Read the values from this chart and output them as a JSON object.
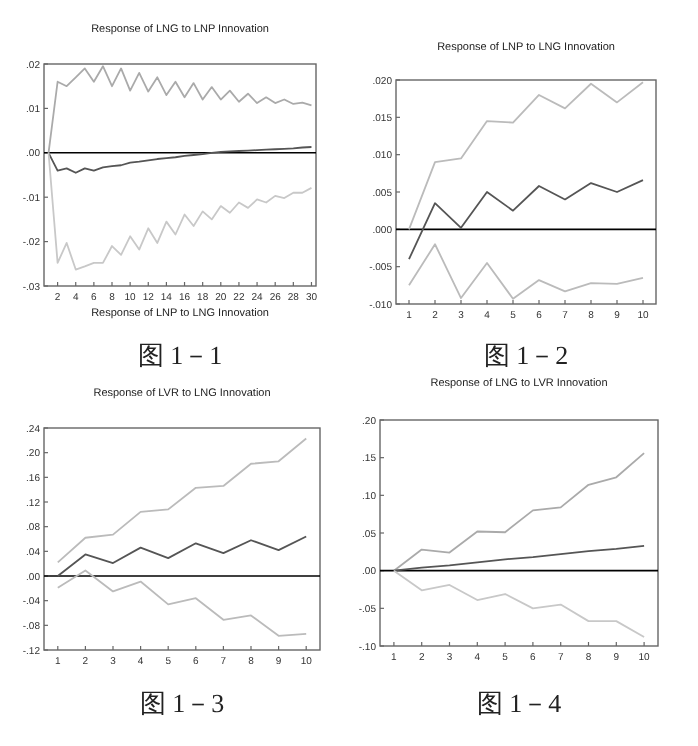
{
  "chart_data": [
    {
      "type": "line",
      "title": "Response of LNG to LNP Innovation",
      "xlabel": "Response of LNP to LNG Innovation",
      "x": [
        1,
        2,
        3,
        4,
        5,
        6,
        7,
        8,
        9,
        10,
        11,
        12,
        13,
        14,
        15,
        16,
        17,
        18,
        19,
        20,
        21,
        22,
        23,
        24,
        25,
        26,
        27,
        28,
        29,
        30
      ],
      "xlim": [
        0.5,
        30.5
      ],
      "xticks": [
        2,
        4,
        6,
        8,
        10,
        12,
        14,
        16,
        18,
        20,
        22,
        24,
        26,
        28,
        30
      ],
      "ylim": [
        -0.03,
        0.02
      ],
      "yticks": [
        {
          "value": 0.02,
          "label": ".02"
        },
        {
          "value": 0.01,
          "label": ".01"
        },
        {
          "value": 0,
          "label": ".00"
        },
        {
          "value": -0.01,
          "label": "-.01"
        },
        {
          "value": -0.02,
          "label": "-.02"
        },
        {
          "value": -0.03,
          "label": "-.03"
        }
      ],
      "series": [
        {
          "color": "#aaaaaa",
          "values": [
            0,
            0.016,
            0.015,
            0.017,
            0.019,
            0.016,
            0.0195,
            0.015,
            0.019,
            0.014,
            0.018,
            0.0138,
            0.017,
            0.013,
            0.016,
            0.0125,
            0.0157,
            0.012,
            0.0148,
            0.012,
            0.014,
            0.0115,
            0.0133,
            0.0112,
            0.0125,
            0.0112,
            0.012,
            0.011,
            0.0113,
            0.0107
          ]
        },
        {
          "color": "#555555",
          "values": [
            0,
            -0.004,
            -0.0035,
            -0.0045,
            -0.0035,
            -0.004,
            -0.0033,
            -0.003,
            -0.0028,
            -0.0022,
            -0.002,
            -0.0017,
            -0.0014,
            -0.0012,
            -0.001,
            -0.0007,
            -0.0005,
            -0.0003,
            0,
            0.0002,
            0.0003,
            0.0004,
            0.0005,
            0.0006,
            0.0007,
            0.0008,
            0.0009,
            0.001,
            0.0012,
            0.0013
          ]
        },
        {
          "color": "#c8c8c8",
          "values": [
            0,
            -0.0248,
            -0.0203,
            -0.0263,
            -0.0256,
            -0.0248,
            -0.0248,
            -0.021,
            -0.023,
            -0.0188,
            -0.0218,
            -0.017,
            -0.0203,
            -0.0155,
            -0.0184,
            -0.0139,
            -0.0165,
            -0.0132,
            -0.015,
            -0.012,
            -0.0135,
            -0.0112,
            -0.0124,
            -0.0105,
            -0.0112,
            -0.0097,
            -0.0102,
            -0.009,
            -0.009,
            -0.0079
          ]
        }
      ],
      "ref_lines": [
        {
          "axis": "y",
          "value": 0,
          "color": "#000000"
        }
      ],
      "annotations": [
        "图 1－1"
      ]
    },
    {
      "type": "line",
      "title": "Response of LNP to LNG Innovation",
      "x": [
        1,
        2,
        3,
        4,
        5,
        6,
        7,
        8,
        9,
        10
      ],
      "xlim": [
        0.5,
        10.5
      ],
      "xticks": [
        1,
        2,
        3,
        4,
        5,
        6,
        7,
        8,
        9,
        10
      ],
      "ylim": [
        -0.01,
        0.02
      ],
      "yticks": [
        {
          "value": 0.02,
          "label": ".020"
        },
        {
          "value": 0.015,
          "label": ".015"
        },
        {
          "value": 0.01,
          "label": ".010"
        },
        {
          "value": 0.005,
          "label": ".005"
        },
        {
          "value": 0,
          "label": ".000"
        },
        {
          "value": -0.005,
          "label": "-.005"
        },
        {
          "value": -0.01,
          "label": "-.010"
        }
      ],
      "series": [
        {
          "color": "#bbbbbb",
          "values": [
            0,
            0.009,
            0.0095,
            0.0145,
            0.0143,
            0.018,
            0.0162,
            0.0195,
            0.017,
            0.0197
          ]
        },
        {
          "color": "#555555",
          "values": [
            -0.004,
            0.0035,
            0.0002,
            0.005,
            0.0025,
            0.0058,
            0.004,
            0.0062,
            0.005,
            0.0066
          ]
        },
        {
          "color": "#bbbbbb",
          "values": [
            -0.0075,
            -0.002,
            -0.0092,
            -0.0045,
            -0.0093,
            -0.0068,
            -0.0083,
            -0.0072,
            -0.0073,
            -0.0065
          ]
        }
      ],
      "ref_lines": [
        {
          "axis": "y",
          "value": 0,
          "color": "#000000"
        }
      ],
      "annotations": [
        "图 1－2"
      ]
    },
    {
      "type": "line",
      "title": "Response of LVR to LNG Innovation",
      "x": [
        1,
        2,
        3,
        4,
        5,
        6,
        7,
        8,
        9,
        10
      ],
      "xlim": [
        0.5,
        10.5
      ],
      "xticks": [
        1,
        2,
        3,
        4,
        5,
        6,
        7,
        8,
        9,
        10
      ],
      "ylim": [
        -0.12,
        0.24
      ],
      "yticks": [
        {
          "value": 0.24,
          "label": ".24"
        },
        {
          "value": 0.2,
          "label": ".20"
        },
        {
          "value": 0.16,
          "label": ".16"
        },
        {
          "value": 0.12,
          "label": ".12"
        },
        {
          "value": 0.08,
          "label": ".08"
        },
        {
          "value": 0.04,
          "label": ".04"
        },
        {
          "value": 0,
          "label": ".00"
        },
        {
          "value": -0.04,
          "label": "-.04"
        },
        {
          "value": -0.08,
          "label": "-.08"
        },
        {
          "value": -0.12,
          "label": "-.12"
        }
      ],
      "series": [
        {
          "color": "#bbbbbb",
          "values": [
            0.022,
            0.062,
            0.067,
            0.104,
            0.108,
            0.143,
            0.146,
            0.182,
            0.186,
            0.223
          ]
        },
        {
          "color": "#555555",
          "values": [
            0,
            0.035,
            0.021,
            0.046,
            0.029,
            0.053,
            0.037,
            0.058,
            0.042,
            0.064
          ]
        },
        {
          "color": "#bbbbbb",
          "values": [
            -0.019,
            0.009,
            -0.025,
            -0.009,
            -0.046,
            -0.036,
            -0.071,
            -0.064,
            -0.097,
            -0.094
          ]
        }
      ],
      "ref_lines": [
        {
          "axis": "y",
          "value": 0,
          "color": "#000000"
        }
      ],
      "annotations": [
        "图 1－3"
      ]
    },
    {
      "type": "line",
      "title": "Response of LNG to LVR Innovation",
      "x": [
        1,
        2,
        3,
        4,
        5,
        6,
        7,
        8,
        9,
        10
      ],
      "xlim": [
        0.5,
        10.5
      ],
      "xticks": [
        1,
        2,
        3,
        4,
        5,
        6,
        7,
        8,
        9,
        10
      ],
      "ylim": [
        -0.1,
        0.2
      ],
      "yticks": [
        {
          "value": 0.2,
          "label": ".20"
        },
        {
          "value": 0.15,
          "label": ".15"
        },
        {
          "value": 0.1,
          "label": ".10"
        },
        {
          "value": 0.05,
          "label": ".05"
        },
        {
          "value": 0,
          "label": ".00"
        },
        {
          "value": -0.05,
          "label": "-.05"
        },
        {
          "value": -0.1,
          "label": "-.10"
        }
      ],
      "series": [
        {
          "color": "#aaaaaa",
          "values": [
            0,
            0.028,
            0.024,
            0.052,
            0.051,
            0.08,
            0.084,
            0.114,
            0.124,
            0.156
          ]
        },
        {
          "color": "#555555",
          "values": [
            0,
            0.004,
            0.007,
            0.011,
            0.015,
            0.018,
            0.022,
            0.026,
            0.029,
            0.033
          ]
        },
        {
          "color": "#c8c8c8",
          "values": [
            0,
            -0.026,
            -0.019,
            -0.039,
            -0.031,
            -0.05,
            -0.045,
            -0.067,
            -0.067,
            -0.088
          ]
        }
      ],
      "ref_lines": [
        {
          "axis": "y",
          "value": 0,
          "color": "#000000"
        }
      ],
      "annotations": [
        "图 1－4"
      ]
    }
  ]
}
